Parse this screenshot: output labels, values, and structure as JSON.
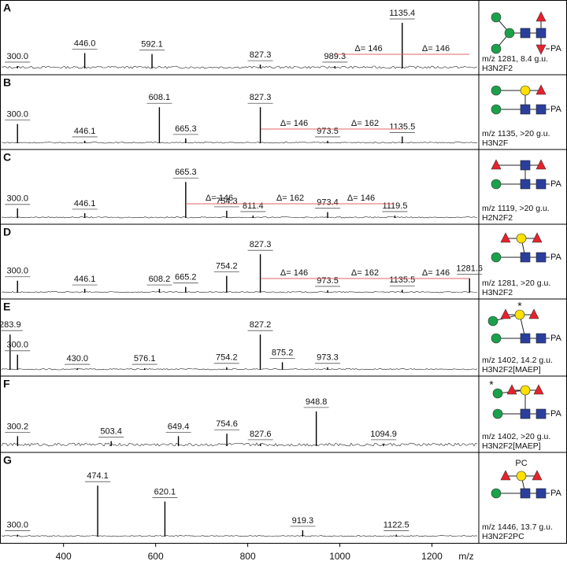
{
  "chart_data": [
    {
      "type": "spectrum",
      "label": "A",
      "x": [
        300.0,
        446.0,
        592.1,
        827.3,
        989.3,
        1135.4
      ],
      "x_labels": [
        "300.0",
        "446.0",
        "592.1",
        "827.3",
        "989.3",
        "1135.4"
      ],
      "values": [
        5,
        32,
        30,
        8,
        5,
        95
      ],
      "xlim": [
        262,
        1300
      ],
      "ylim": [
        0,
        100
      ],
      "deltas": [
        "Δ= 146",
        "Δ= 146"
      ],
      "precursor": "m/z 1281, 8.4 g.u.",
      "composition": "H3N2F2",
      "reducing_end": "PA",
      "color": "#000000",
      "delta_color": "#e06666"
    },
    {
      "type": "spectrum",
      "label": "B",
      "x": [
        300.0,
        446.1,
        608.1,
        665.3,
        827.3,
        973.5,
        1135.5
      ],
      "x_labels": [
        "300.0",
        "446.1",
        "608.1",
        "665.3",
        "827.3",
        "973.5",
        "1135.5"
      ],
      "values": [
        40,
        5,
        75,
        10,
        75,
        5,
        14
      ],
      "xlim": [
        262,
        1300
      ],
      "ylim": [
        0,
        100
      ],
      "deltas": [
        "Δ= 146",
        "Δ= 162"
      ],
      "precursor": "m/z 1135, >20 g.u.",
      "composition": "H3N2F",
      "reducing_end": "PA",
      "color": "#000000",
      "delta_color": "#e06666"
    },
    {
      "type": "spectrum",
      "label": "C",
      "x": [
        300.0,
        446.1,
        665.3,
        754.3,
        811.4,
        973.4,
        1119.5
      ],
      "x_labels": [
        "300.0",
        "446.1",
        "665.3",
        "754.3",
        "811.4",
        "973.4",
        "1119.5"
      ],
      "values": [
        20,
        10,
        75,
        15,
        5,
        12,
        5
      ],
      "xlim": [
        262,
        1300
      ],
      "ylim": [
        0,
        100
      ],
      "deltas": [
        "Δ= 146",
        "Δ= 162",
        "Δ= 146"
      ],
      "precursor": "m/z 1119, >20 g.u.",
      "composition": "H2N2F2",
      "reducing_end": "PA",
      "color": "#000000",
      "delta_color": "#e06666"
    },
    {
      "type": "spectrum",
      "label": "D",
      "x": [
        300.0,
        446.1,
        608.2,
        665.2,
        754.2,
        827.3,
        973.5,
        1135.5,
        1281.6
      ],
      "x_labels": [
        "300.0",
        "446.1",
        "608.2",
        "665.2",
        "754.2",
        "827.3",
        "973.5",
        "1135.5",
        "1281.6"
      ],
      "values": [
        25,
        8,
        8,
        12,
        35,
        80,
        5,
        6,
        30
      ],
      "xlim": [
        262,
        1300
      ],
      "ylim": [
        0,
        100
      ],
      "deltas": [
        "Δ= 146",
        "Δ= 162",
        "Δ= 146"
      ],
      "precursor": "m/z 1281, >20 g.u.",
      "composition": "H3N2F2",
      "reducing_end": "PA",
      "color": "#000000",
      "delta_color": "#e06666"
    },
    {
      "type": "spectrum",
      "label": "E",
      "x": [
        283.9,
        300.0,
        430.0,
        576.1,
        754.2,
        827.2,
        875.2,
        973.3
      ],
      "x_labels": [
        "283.9",
        "300.0",
        "430.0",
        "576.1",
        "754.2",
        "827.2",
        "875.2",
        "973.3"
      ],
      "values": [
        70,
        30,
        3,
        3,
        5,
        70,
        15,
        5
      ],
      "xlim": [
        262,
        1300
      ],
      "ylim": [
        0,
        100
      ],
      "deltas": [],
      "precursor": "m/z 1402, 14.2 g.u.",
      "composition": "H3N2F2[MAEP]",
      "reducing_end": "PA",
      "annotation": "*",
      "color": "#000000",
      "delta_color": "#e06666"
    },
    {
      "type": "spectrum",
      "label": "F",
      "x": [
        300.2,
        503.4,
        649.4,
        754.6,
        827.6,
        948.8,
        1094.9
      ],
      "x_labels": [
        "300.2",
        "503.4",
        "649.4",
        "754.6",
        "827.6",
        "948.8",
        "1094.9"
      ],
      "values": [
        20,
        10,
        20,
        25,
        5,
        70,
        5
      ],
      "xlim": [
        262,
        1300
      ],
      "ylim": [
        0,
        100
      ],
      "deltas": [],
      "precursor": "m/z 1402, >20 g.u.",
      "composition": "H3N2F2[MAEP]",
      "reducing_end": "PA",
      "annotation": "*",
      "color": "#000000",
      "delta_color": "#e06666"
    },
    {
      "type": "spectrum",
      "label": "G",
      "x": [
        300.0,
        474.1,
        620.1,
        919.3,
        1122.5
      ],
      "x_labels": [
        "300.0",
        "474.1",
        "620.1",
        "919.3",
        "1122.5"
      ],
      "values": [
        3,
        80,
        55,
        10,
        3
      ],
      "xlim": [
        262,
        1300
      ],
      "ylim": [
        0,
        100
      ],
      "xticks": [
        400,
        600,
        800,
        1000,
        1200
      ],
      "xlabel": "m/z",
      "deltas": [],
      "precursor": "m/z 1446, 13.7 g.u.",
      "composition": "H3N2F2PC",
      "reducing_end": "PA",
      "substituent": "PC",
      "color": "#000000",
      "delta_color": "#e06666"
    }
  ]
}
